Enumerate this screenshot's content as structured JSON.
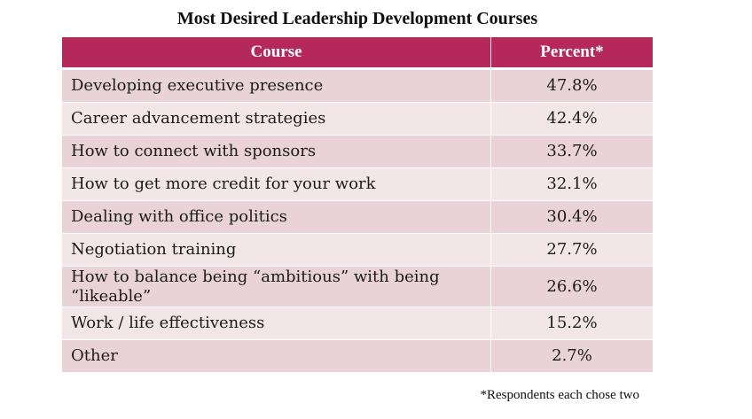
{
  "chart_data": {
    "type": "table",
    "title": "Most Desired Leadership Development Courses",
    "columns": [
      "Course",
      "Percent*"
    ],
    "rows": [
      {
        "course": "Developing executive presence",
        "percent": "47.8%",
        "value": 47.8
      },
      {
        "course": "Career advancement strategies",
        "percent": "42.4%",
        "value": 42.4
      },
      {
        "course": "How to connect with sponsors",
        "percent": "33.7%",
        "value": 33.7
      },
      {
        "course": "How to get more credit for your work",
        "percent": "32.1%",
        "value": 32.1
      },
      {
        "course": "Dealing with office politics",
        "percent": "30.4%",
        "value": 30.4
      },
      {
        "course": "Negotiation training",
        "percent": "27.7%",
        "value": 27.7
      },
      {
        "course": "How to balance being “ambitious” with being “likeable”",
        "percent": "26.6%",
        "value": 26.6
      },
      {
        "course": "Work / life effectiveness",
        "percent": "15.2%",
        "value": 15.2
      },
      {
        "course": "Other",
        "percent": "2.7%",
        "value": 2.7
      }
    ],
    "footnote": "*Respondents each chose two"
  },
  "colors": {
    "header_bg": "#b5295a",
    "header_text": "#ffffff",
    "row_odd": "#e9d3d9",
    "row_even": "#f3e6e9"
  }
}
